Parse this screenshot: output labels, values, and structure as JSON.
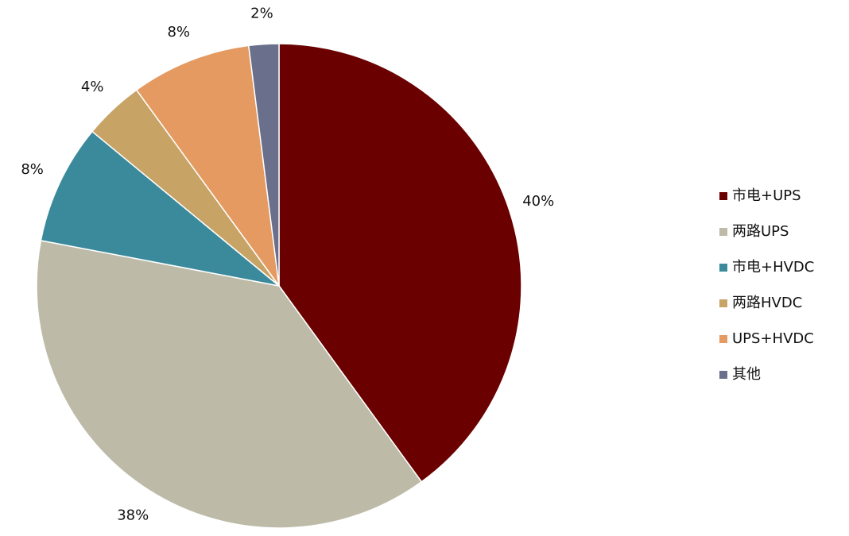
{
  "chart_data": {
    "type": "pie",
    "categories": [
      "市电+UPS",
      "两路UPS",
      "市电+HVDC",
      "两路HVDC",
      "UPS+HVDC",
      "其他"
    ],
    "values": [
      40,
      38,
      8,
      4,
      8,
      2
    ],
    "value_labels": [
      "40%",
      "38%",
      "8%",
      "4%",
      "8%",
      "2%"
    ],
    "colors": [
      "#6b0000",
      "#bdbba8",
      "#3a8a9c",
      "#c8a366",
      "#e49a60",
      "#6a6f8c"
    ],
    "legend": "right"
  }
}
